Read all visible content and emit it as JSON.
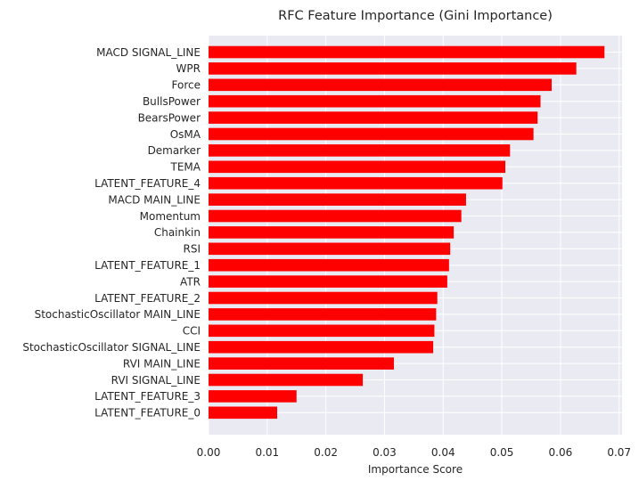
{
  "chart_data": {
    "type": "bar",
    "orientation": "horizontal",
    "title": "RFC Feature Importance (Gini Importance)",
    "xlabel": "Importance Score",
    "ylabel": "",
    "xlim": [
      0.0,
      0.0705
    ],
    "xticks": [
      "0.00",
      "0.01",
      "0.02",
      "0.03",
      "0.04",
      "0.05",
      "0.06",
      "0.07"
    ],
    "grid": true,
    "bar_color": "#ff0000",
    "background_color": "#eaeaf2",
    "categories": [
      "MACD SIGNAL_LINE",
      "WPR",
      "Force",
      "BullsPower",
      "BearsPower",
      "OsMA",
      "Demarker",
      "TEMA",
      "LATENT_FEATURE_4",
      "MACD MAIN_LINE",
      "Momentum",
      "Chainkin",
      "RSI",
      "LATENT_FEATURE_1",
      "ATR",
      "LATENT_FEATURE_2",
      "StochasticOscillator MAIN_LINE",
      "CCI",
      "StochasticOscillator SIGNAL_LINE",
      "RVI MAIN_LINE",
      "RVI SIGNAL_LINE",
      "LATENT_FEATURE_3",
      "LATENT_FEATURE_0"
    ],
    "values": [
      0.0675,
      0.0627,
      0.0585,
      0.0566,
      0.0561,
      0.0554,
      0.0514,
      0.0506,
      0.0501,
      0.0439,
      0.0431,
      0.0418,
      0.0412,
      0.041,
      0.0407,
      0.039,
      0.0388,
      0.0385,
      0.0383,
      0.0316,
      0.0263,
      0.015,
      0.0117
    ]
  }
}
